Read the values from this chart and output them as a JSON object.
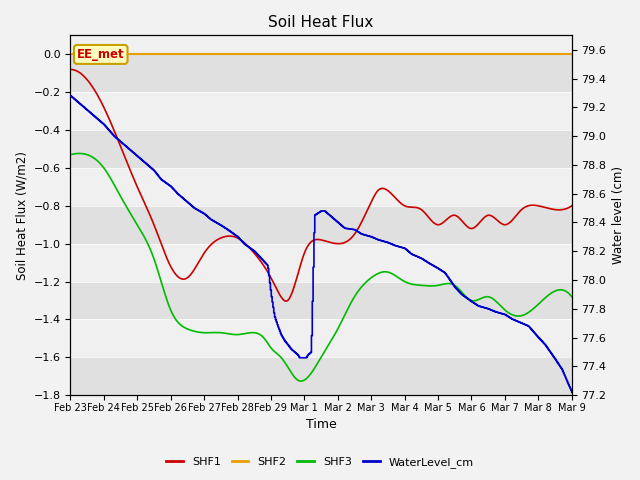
{
  "title": "Soil Heat Flux",
  "xlabel": "Time",
  "ylabel_left": "Soil Heat Flux (W/m2)",
  "ylabel_right": "Water level (cm)",
  "fig_bg": "#f2f2f2",
  "plot_bg_light": "#f0f0f0",
  "plot_bg_dark": "#e0e0e0",
  "ylim_left": [
    -1.8,
    0.1
  ],
  "ylim_right": [
    77.2,
    79.7
  ],
  "yticks_left": [
    0.0,
    -0.2,
    -0.4,
    -0.6,
    -0.8,
    -1.0,
    -1.2,
    -1.4,
    -1.6,
    -1.8
  ],
  "yticks_right": [
    79.6,
    79.4,
    79.2,
    79.0,
    78.8,
    78.6,
    78.4,
    78.2,
    78.0,
    77.8,
    77.6,
    77.4,
    77.2
  ],
  "xtick_labels": [
    "Feb 23",
    "Feb 24",
    "Feb 25",
    "Feb 26",
    "Feb 27",
    "Feb 28",
    "Feb 29",
    "Mar 1",
    "Mar 2",
    "Mar 3",
    "Mar 4",
    "Mar 5",
    "Mar 6",
    "Mar 7",
    "Mar 8",
    "Mar 9"
  ],
  "colors": {
    "SHF1": "#cc0000",
    "SHF2": "#e8a000",
    "SHF3": "#00bb00",
    "WaterLevel": "#0000cc"
  },
  "legend_labels": [
    "SHF1",
    "SHF2",
    "SHF3",
    "WaterLevel_cm"
  ],
  "ee_met_label": "EE_met",
  "ee_met_box_bg": "#ffffc0",
  "ee_met_box_edge": "#c8a000",
  "ee_met_text_color": "#cc0000",
  "ee_met_line_color": "#e8a000"
}
